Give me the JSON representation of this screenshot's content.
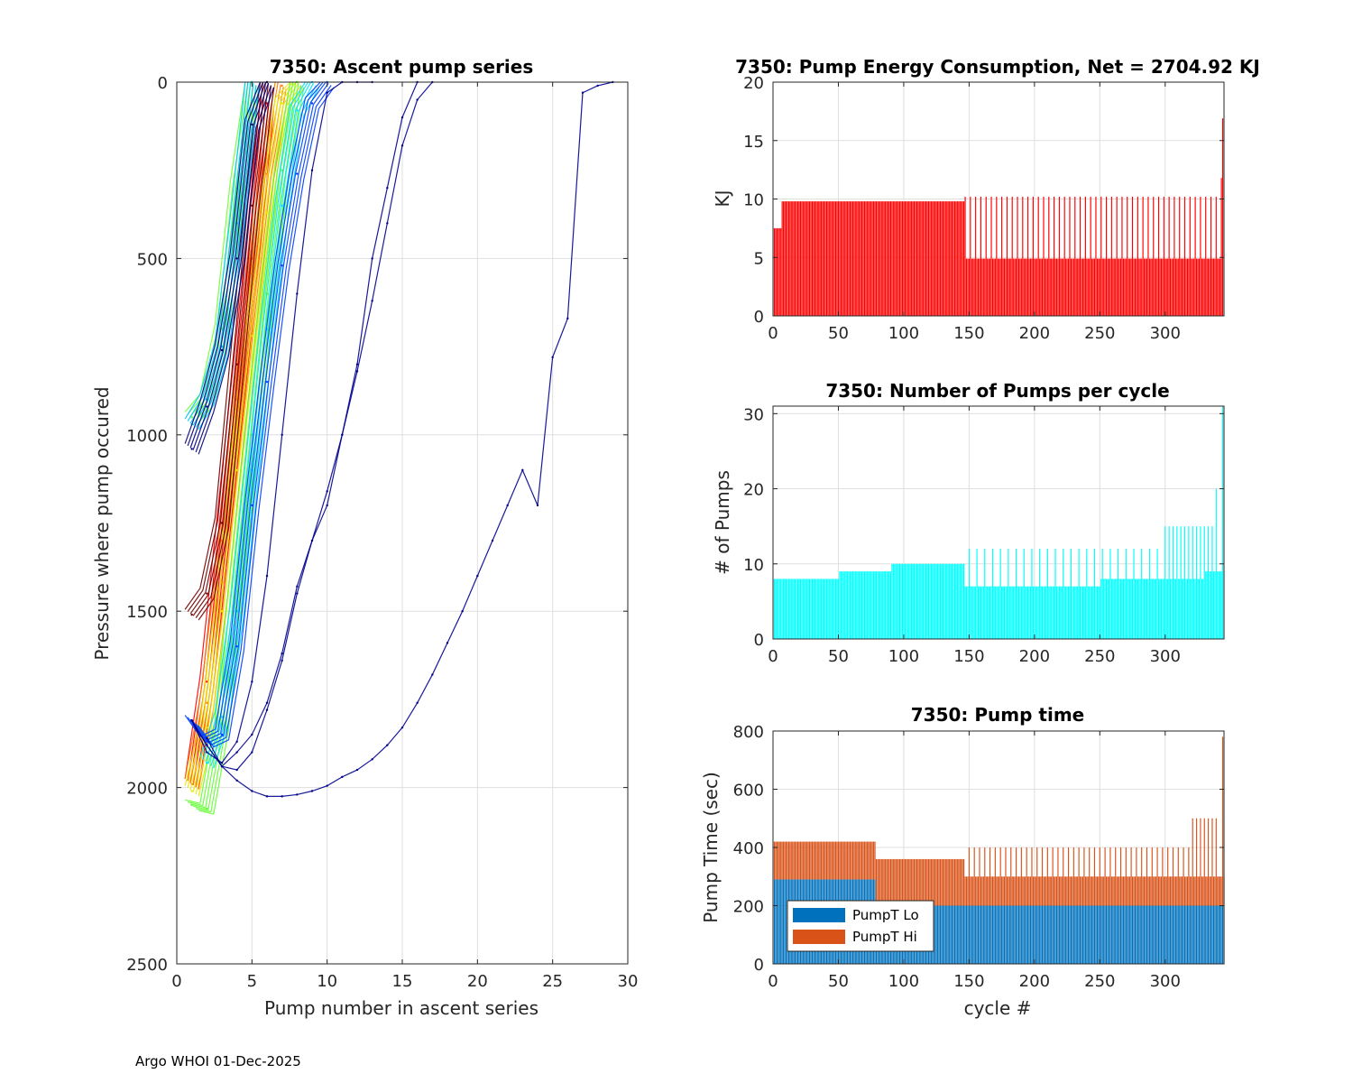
{
  "footer": "Argo WHOI 01-Dec-2025",
  "chart_data": [
    {
      "id": "ascent",
      "type": "line",
      "title": "7350: Ascent pump series",
      "xlabel": "Pump number in ascent series",
      "ylabel": "Pressure where pump occured",
      "xlim": [
        0,
        30
      ],
      "ylim": [
        0,
        2500
      ],
      "y_reversed": true,
      "xticks": [
        0,
        5,
        10,
        15,
        20,
        25,
        30
      ],
      "yticks": [
        0,
        500,
        1000,
        1500,
        2000,
        2500
      ],
      "grid": true,
      "colormap": "jet",
      "series": [
        {
          "name": "deep-start red profiles",
          "color": "#ff0000",
          "x": [
            1,
            2,
            3,
            4,
            5,
            6
          ],
          "y": [
            1990,
            1700,
            1300,
            900,
            500,
            60
          ]
        },
        {
          "name": "deep-start orange profiles",
          "color": "#ff8000",
          "x": [
            1,
            2,
            3,
            4,
            5,
            6,
            7
          ],
          "y": [
            1990,
            1760,
            1420,
            1000,
            620,
            260,
            10
          ]
        },
        {
          "name": "deep-start yellow profiles",
          "color": "#e8e800",
          "x": [
            1,
            2,
            3,
            4,
            5,
            6,
            7,
            8
          ],
          "y": [
            2010,
            1830,
            1500,
            1100,
            720,
            370,
            60,
            0
          ]
        },
        {
          "name": "deep-start green profiles",
          "color": "#60ff30",
          "x": [
            1,
            2,
            3,
            4,
            5,
            6,
            7,
            8
          ],
          "y": [
            2050,
            2060,
            1820,
            1400,
            1000,
            600,
            250,
            0
          ]
        },
        {
          "name": "deep-start cyan profiles",
          "color": "#00e0ff",
          "x": [
            2,
            3,
            4,
            5,
            6,
            7,
            8,
            9
          ],
          "y": [
            1930,
            1800,
            1500,
            1100,
            700,
            350,
            80,
            0
          ]
        },
        {
          "name": "deep-start blue profiles",
          "color": "#0040ff",
          "x": [
            1,
            2,
            3,
            4,
            5,
            6,
            7,
            8,
            9,
            10
          ],
          "y": [
            1810,
            1870,
            1850,
            1600,
            1200,
            850,
            520,
            260,
            60,
            0
          ]
        },
        {
          "name": "mid-start dark-red profiles",
          "color": "#700000",
          "x": [
            1,
            2,
            3,
            4,
            5,
            6
          ],
          "y": [
            1510,
            1450,
            1250,
            800,
            350,
            0
          ]
        },
        {
          "name": "shallow-start green profiles",
          "color": "#70ff30",
          "x": [
            1,
            2,
            3,
            4,
            5
          ],
          "y": [
            950,
            900,
            700,
            300,
            0
          ]
        },
        {
          "name": "shallow-start cyan profiles",
          "color": "#00c8ff",
          "x": [
            1,
            2,
            3,
            4,
            5
          ],
          "y": [
            970,
            900,
            750,
            400,
            0
          ]
        },
        {
          "name": "shallow-start navy profiles",
          "color": "#000080",
          "x": [
            1,
            2,
            3,
            4,
            5,
            6
          ],
          "y": [
            1040,
            920,
            760,
            500,
            120,
            0
          ]
        },
        {
          "name": "long series 1",
          "color": "#00008f",
          "x": [
            1,
            2,
            3,
            4,
            5,
            6,
            7,
            8,
            9,
            10,
            11,
            12,
            13
          ],
          "y": [
            1810,
            1900,
            1930,
            1870,
            1700,
            1400,
            1000,
            600,
            250,
            30,
            0,
            0,
            0
          ]
        },
        {
          "name": "long series 2",
          "color": "#00008f",
          "x": [
            1,
            2,
            3,
            4,
            5,
            6,
            7,
            8,
            9,
            10,
            11,
            12,
            13,
            14,
            15,
            16
          ],
          "y": [
            1810,
            1880,
            1940,
            1900,
            1850,
            1760,
            1620,
            1430,
            1300,
            1200,
            1000,
            800,
            500,
            300,
            100,
            0
          ]
        },
        {
          "name": "long series 3",
          "color": "#00008f",
          "x": [
            2,
            3,
            4,
            5,
            6,
            7,
            8,
            9,
            10,
            11,
            12,
            13,
            14,
            15,
            16,
            17
          ],
          "y": [
            1860,
            1940,
            1950,
            1900,
            1780,
            1640,
            1450,
            1300,
            1160,
            1000,
            820,
            620,
            400,
            180,
            50,
            0
          ]
        },
        {
          "name": "longest series",
          "color": "#00008f",
          "x": [
            1,
            2,
            3,
            4,
            5,
            6,
            7,
            8,
            9,
            10,
            11,
            12,
            13,
            14,
            15,
            16,
            17,
            18,
            19,
            20,
            21,
            22,
            23,
            24,
            25,
            26,
            27,
            28,
            29
          ],
          "y": [
            1810,
            1880,
            1940,
            1980,
            2010,
            2025,
            2025,
            2020,
            2010,
            1995,
            1970,
            1950,
            1920,
            1880,
            1830,
            1760,
            1680,
            1590,
            1500,
            1400,
            1300,
            1200,
            1100,
            1200,
            780,
            670,
            30,
            10,
            0
          ]
        }
      ]
    },
    {
      "id": "energy",
      "type": "bar",
      "title": "7350: Pump Energy Consumption,  Net = 2704.92 KJ",
      "xlabel": "",
      "ylabel": "KJ",
      "xlim": [
        0,
        345
      ],
      "ylim": [
        0,
        20
      ],
      "xticks": [
        0,
        50,
        100,
        150,
        200,
        250,
        300
      ],
      "yticks": [
        0,
        5,
        10,
        15,
        20
      ],
      "grid": true,
      "color": "#ff0000",
      "segments": [
        {
          "from": 1,
          "to": 6,
          "value": 7.5,
          "every": 1
        },
        {
          "from": 7,
          "to": 146,
          "value": 9.8,
          "every": 1
        },
        {
          "from": 147,
          "to": 342,
          "value": 4.9,
          "every": 1
        },
        {
          "from": 147,
          "to": 342,
          "value": 10.2,
          "every": 4
        },
        {
          "from": 343,
          "to": 343,
          "value": 11.8,
          "every": 1
        },
        {
          "from": 344,
          "to": 344,
          "value": 16.9,
          "every": 1
        }
      ]
    },
    {
      "id": "numpumps",
      "type": "bar",
      "title": "7350: Number of Pumps per cycle",
      "xlabel": "",
      "ylabel": "# of Pumps",
      "xlim": [
        0,
        345
      ],
      "ylim": [
        0,
        31
      ],
      "xticks": [
        0,
        50,
        100,
        150,
        200,
        250,
        300
      ],
      "yticks": [
        0,
        10,
        20,
        30
      ],
      "grid": true,
      "color": "#00ffff",
      "segments": [
        {
          "from": 1,
          "to": 50,
          "value": 8,
          "every": 1
        },
        {
          "from": 51,
          "to": 90,
          "value": 9,
          "every": 1
        },
        {
          "from": 91,
          "to": 146,
          "value": 10,
          "every": 1
        },
        {
          "from": 147,
          "to": 250,
          "value": 7,
          "every": 1
        },
        {
          "from": 251,
          "to": 330,
          "value": 8,
          "every": 1
        },
        {
          "from": 331,
          "to": 345,
          "value": 9,
          "every": 1
        },
        {
          "from": 150,
          "to": 300,
          "value": 12,
          "every": 6
        },
        {
          "from": 300,
          "to": 338,
          "value": 15,
          "every": 3
        },
        {
          "from": 339,
          "to": 339,
          "value": 20,
          "every": 1
        },
        {
          "from": 344,
          "to": 344,
          "value": 31,
          "every": 1
        }
      ]
    },
    {
      "id": "pumptime",
      "type": "bar",
      "title": "7350: Pump time",
      "xlabel": "cycle #",
      "ylabel": "Pump Time (sec)",
      "xlim": [
        0,
        345
      ],
      "ylim": [
        0,
        800
      ],
      "xticks": [
        0,
        50,
        100,
        150,
        200,
        250,
        300
      ],
      "yticks": [
        0,
        200,
        400,
        600,
        800
      ],
      "grid": true,
      "stacked": true,
      "legend": "bottom-left",
      "series": [
        {
          "name": "PumpT Lo",
          "color": "#0072bd",
          "segments": [
            {
              "from": 1,
              "to": 78,
              "value": 290
            },
            {
              "from": 79,
              "to": 345,
              "value": 200
            }
          ]
        },
        {
          "name": "PumpT Hi",
          "color": "#d95319",
          "segments": [
            {
              "from": 1,
              "to": 78,
              "value": 130
            },
            {
              "from": 79,
              "to": 146,
              "value": 160
            },
            {
              "from": 147,
              "to": 345,
              "value": 100
            },
            {
              "from": 150,
              "to": 320,
              "value": 200,
              "every": 4
            },
            {
              "from": 321,
              "to": 340,
              "value": 300,
              "every": 3
            },
            {
              "from": 344,
              "to": 344,
              "value": 580
            }
          ]
        }
      ]
    }
  ]
}
